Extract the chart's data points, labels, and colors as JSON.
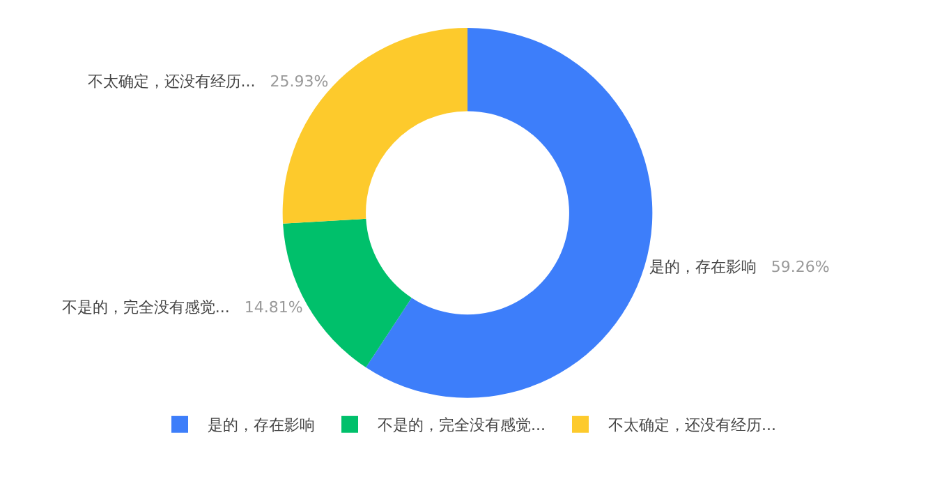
{
  "chart_data": {
    "type": "donut",
    "categories": [
      "是的，存在影响",
      "不是的，完全没有感觉...",
      "不太确定，还没有经历..."
    ],
    "values": [
      59.26,
      14.81,
      25.93
    ],
    "colors": [
      "#3d7efa",
      "#00c06b",
      "#fdca2c"
    ],
    "value_labels": [
      "59.26%",
      "14.81%",
      "25.93%"
    ],
    "legend": "bottom"
  }
}
